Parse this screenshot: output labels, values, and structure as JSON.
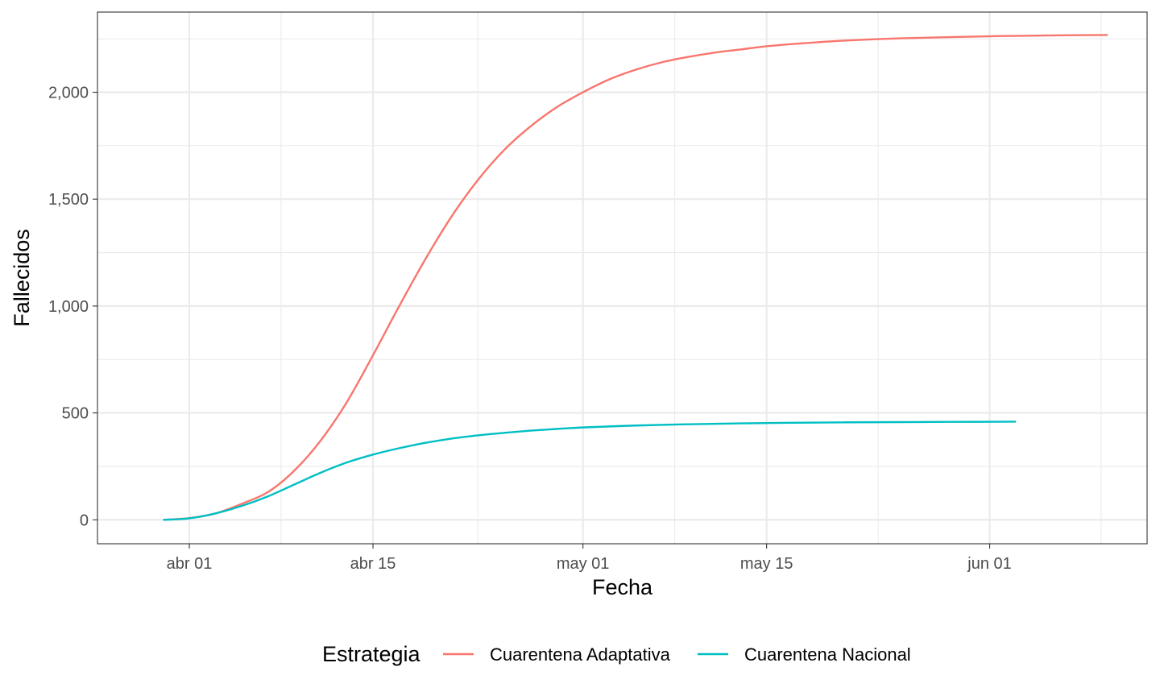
{
  "chart_data": {
    "type": "line",
    "xlabel": "Fecha",
    "ylabel": "Fallecidos",
    "x_ticks": [
      "abr 01",
      "abr 15",
      "may 01",
      "may 15",
      "jun 01"
    ],
    "x_tick_dates": [
      "2020-04-01",
      "2020-04-15",
      "2020-05-01",
      "2020-05-15",
      "2020-06-01"
    ],
    "x_range": [
      "2020-03-25",
      "2020-06-13"
    ],
    "y_ticks": [
      "0",
      "500",
      "1,000",
      "1,500",
      "2,000"
    ],
    "y_tick_values": [
      0,
      500,
      1000,
      1500,
      2000
    ],
    "ylim": [
      -112,
      2375
    ],
    "grid": true,
    "legend": {
      "title": "Estrategia",
      "position": "bottom"
    },
    "series": [
      {
        "name": "Cuarentena Adaptativa",
        "color": "#F8766D",
        "points": [
          [
            "2020-03-30",
            0
          ],
          [
            "2020-04-01",
            8
          ],
          [
            "2020-04-03",
            30
          ],
          [
            "2020-04-05",
            75
          ],
          [
            "2020-04-07",
            130
          ],
          [
            "2020-04-09",
            230
          ],
          [
            "2020-04-11",
            370
          ],
          [
            "2020-04-13",
            550
          ],
          [
            "2020-04-15",
            770
          ],
          [
            "2020-04-17",
            1000
          ],
          [
            "2020-04-19",
            1220
          ],
          [
            "2020-04-21",
            1420
          ],
          [
            "2020-04-23",
            1590
          ],
          [
            "2020-04-25",
            1730
          ],
          [
            "2020-04-27",
            1840
          ],
          [
            "2020-04-29",
            1930
          ],
          [
            "2020-05-01",
            2000
          ],
          [
            "2020-05-03",
            2060
          ],
          [
            "2020-05-05",
            2105
          ],
          [
            "2020-05-07",
            2140
          ],
          [
            "2020-05-09",
            2165
          ],
          [
            "2020-05-11",
            2185
          ],
          [
            "2020-05-13",
            2200
          ],
          [
            "2020-05-15",
            2215
          ],
          [
            "2020-05-18",
            2230
          ],
          [
            "2020-05-21",
            2242
          ],
          [
            "2020-05-25",
            2252
          ],
          [
            "2020-05-29",
            2258
          ],
          [
            "2020-06-02",
            2263
          ],
          [
            "2020-06-06",
            2266
          ],
          [
            "2020-06-10",
            2268
          ]
        ]
      },
      {
        "name": "Cuarentena Nacional",
        "color": "#00BFC4",
        "points": [
          [
            "2020-03-30",
            0
          ],
          [
            "2020-04-01",
            7
          ],
          [
            "2020-04-03",
            30
          ],
          [
            "2020-04-05",
            65
          ],
          [
            "2020-04-07",
            110
          ],
          [
            "2020-04-09",
            165
          ],
          [
            "2020-04-11",
            220
          ],
          [
            "2020-04-13",
            268
          ],
          [
            "2020-04-15",
            305
          ],
          [
            "2020-04-17",
            335
          ],
          [
            "2020-04-19",
            360
          ],
          [
            "2020-04-21",
            380
          ],
          [
            "2020-04-23",
            395
          ],
          [
            "2020-04-25",
            407
          ],
          [
            "2020-04-27",
            417
          ],
          [
            "2020-04-29",
            425
          ],
          [
            "2020-05-01",
            432
          ],
          [
            "2020-05-05",
            441
          ],
          [
            "2020-05-09",
            447
          ],
          [
            "2020-05-13",
            451
          ],
          [
            "2020-05-17",
            454
          ],
          [
            "2020-05-21",
            456
          ],
          [
            "2020-05-25",
            457
          ],
          [
            "2020-05-29",
            458
          ],
          [
            "2020-06-03",
            459
          ]
        ]
      }
    ]
  }
}
